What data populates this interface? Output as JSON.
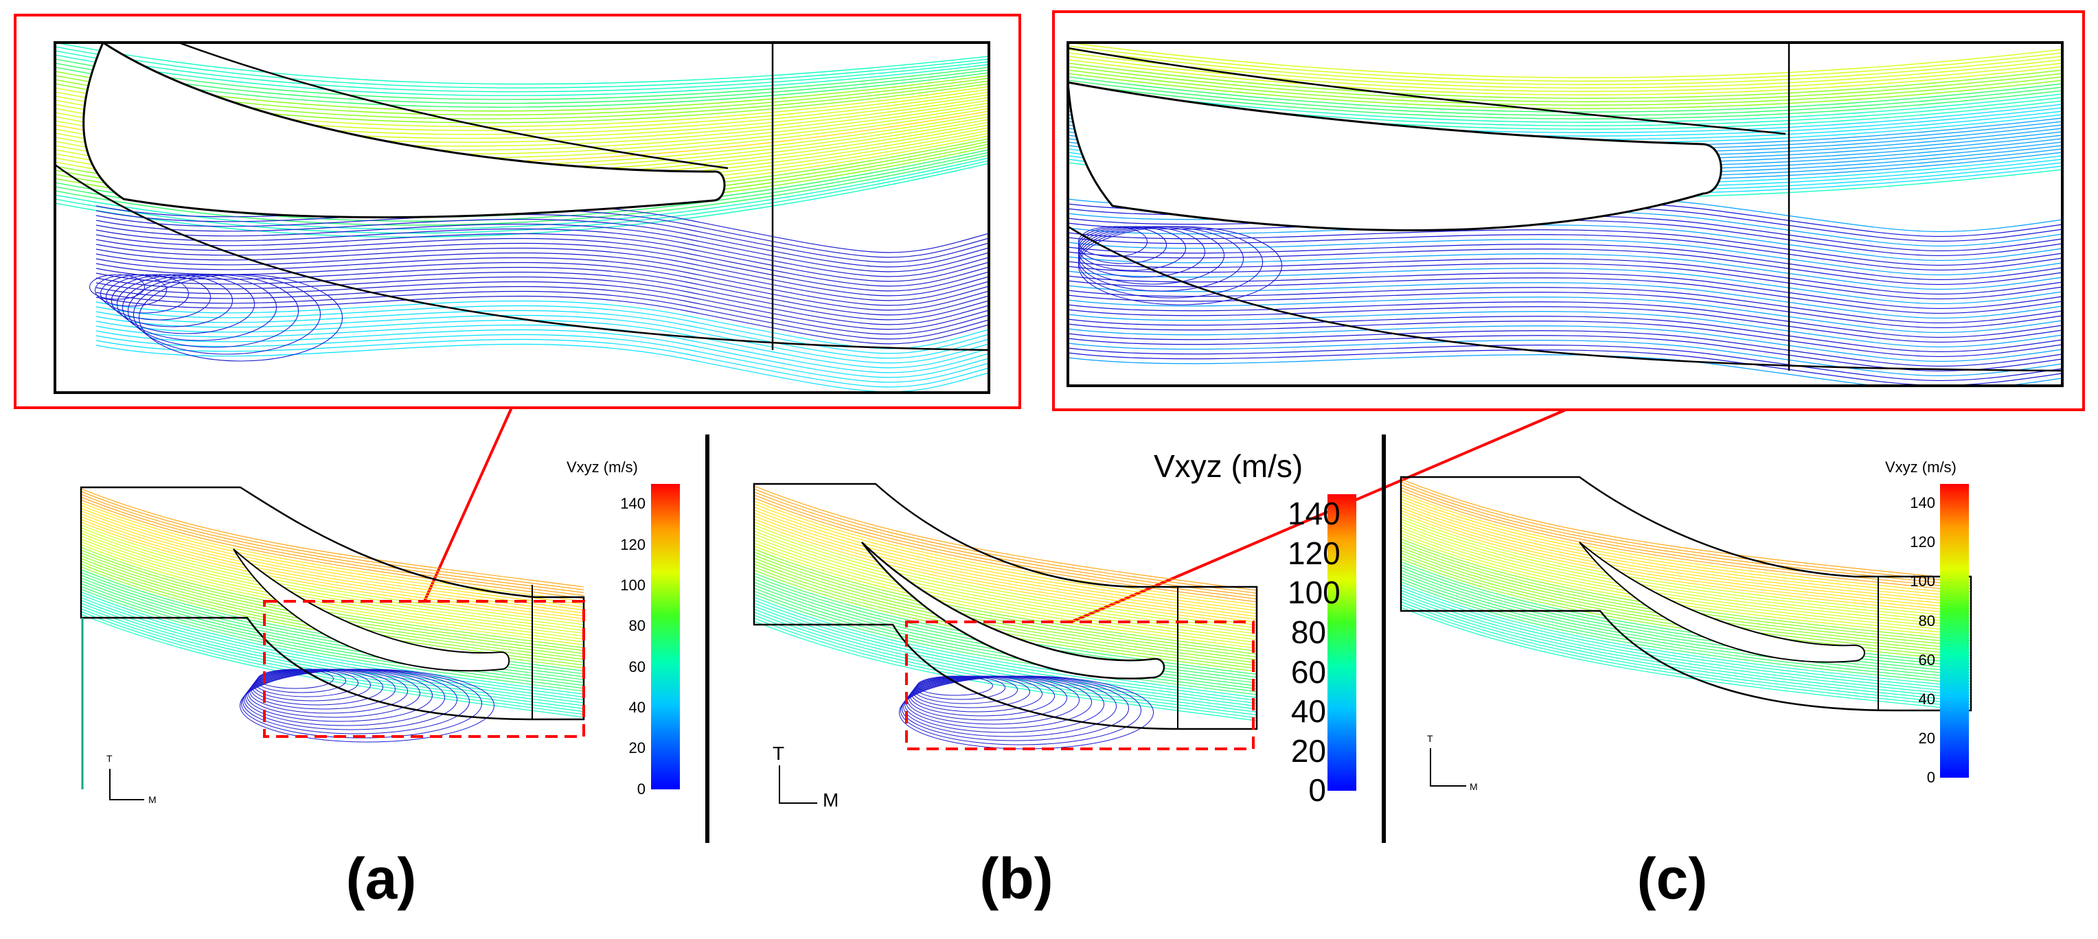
{
  "figure": {
    "panels": [
      {
        "id": "a",
        "caption": "(a)"
      },
      {
        "id": "b",
        "caption": "(b)"
      },
      {
        "id": "c",
        "caption": "(c)"
      }
    ],
    "colorbar": {
      "title": "Vxyz (m/s)",
      "title_b": "Vxyz (m/s)",
      "ticks": [
        "0",
        "20",
        "40",
        "60",
        "80",
        "100",
        "120",
        "140"
      ],
      "range": [
        0,
        150
      ],
      "colormap": [
        "#0000ff",
        "#0080ff",
        "#00e0ff",
        "#00ff80",
        "#80ff00",
        "#ffff00",
        "#ff8000",
        "#ff0000"
      ]
    },
    "axis_labels": {
      "t": "T",
      "m": "M"
    },
    "colors": {
      "highlight_box": "#ff0000",
      "divider": "#000000",
      "low_speed": "#1010d0"
    }
  }
}
